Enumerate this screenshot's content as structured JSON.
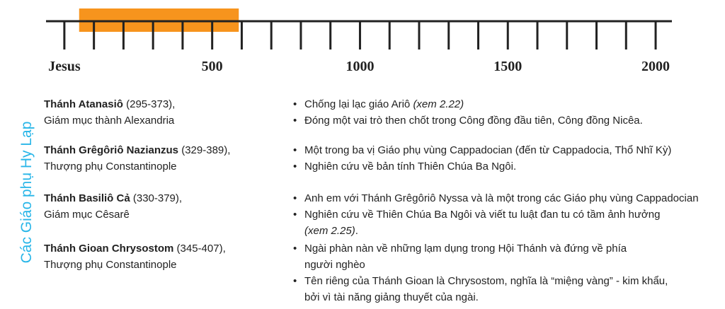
{
  "timeline": {
    "xlim": [
      -62,
      2055
    ],
    "span": [
      50,
      590
    ],
    "span_color": "#f7941d",
    "ticks": [
      0,
      100,
      200,
      300,
      400,
      500,
      600,
      700,
      800,
      900,
      1000,
      1100,
      1200,
      1300,
      1400,
      1500,
      1600,
      1700,
      1800,
      1900,
      2000
    ],
    "labels": [
      {
        "value": 0,
        "label": "Jesus"
      },
      500,
      1000,
      1500,
      2000
    ]
  },
  "side_title": "Các Giáo phụ Hy Lạp",
  "fathers": [
    {
      "name": "Thánh Atanasiô",
      "dates": "(295-373),",
      "title": "Giám mục thành Alexandria",
      "bullets": [
        [
          [
            {
              "text": "Chống lại lạc giáo Ariô "
            },
            {
              "em": "(xem 2.22)"
            }
          ]
        ],
        [
          [
            {
              "text": "Đóng một vai trò then chốt trong Công đồng đầu tiên, Công đồng Nicêa."
            }
          ]
        ]
      ]
    },
    {
      "name": "Thánh Grêgôriô Nazianzus",
      "dates": "(329-389),",
      "title": "Thượng phụ Constantinople",
      "bullets": [
        [
          [
            {
              "text": "Một trong ba vị Giáo phụ vùng Cappadocian (đến từ Cappadocia, Thổ Nhĩ Kỳ)"
            }
          ]
        ],
        [
          [
            {
              "text": "Nghiên cứu về bản tính Thiên Chúa Ba Ngôi."
            }
          ]
        ]
      ]
    },
    {
      "name": "Thánh Basiliô Cả",
      "dates": "(330-379),",
      "title": "Giám mục Cêsarê",
      "bullets": [
        [
          [
            {
              "text": "Anh em với Thánh Grêgôriô Nyssa và là một trong các Giáo phụ vùng Cappadocian"
            }
          ]
        ],
        [
          [
            {
              "text": "Nghiên cứu về Thiên Chúa Ba Ngôi và viết tu luật đan tu có tầm ảnh hưởng"
            }
          ],
          [
            {
              "em": "(xem 2.25)"
            },
            {
              "text": "."
            }
          ]
        ]
      ]
    },
    {
      "name": "Thánh Gioan Chrysostom",
      "dates": "(345-407),",
      "title": "Thượng phụ Constantinople",
      "bullets": [
        [
          [
            {
              "text": "Ngài phàn nàn về những lạm dụng trong Hội Thánh và đứng về phía"
            }
          ],
          [
            {
              "text": "người nghèo"
            }
          ]
        ],
        [
          [
            {
              "text": "Tên riêng của Thánh Gioan là Chrysostom, nghĩa là “miệng vàng” - kim khẩu,"
            }
          ],
          [
            {
              "text": "bởi vì tài năng giảng thuyết của ngài."
            }
          ]
        ]
      ]
    }
  ]
}
